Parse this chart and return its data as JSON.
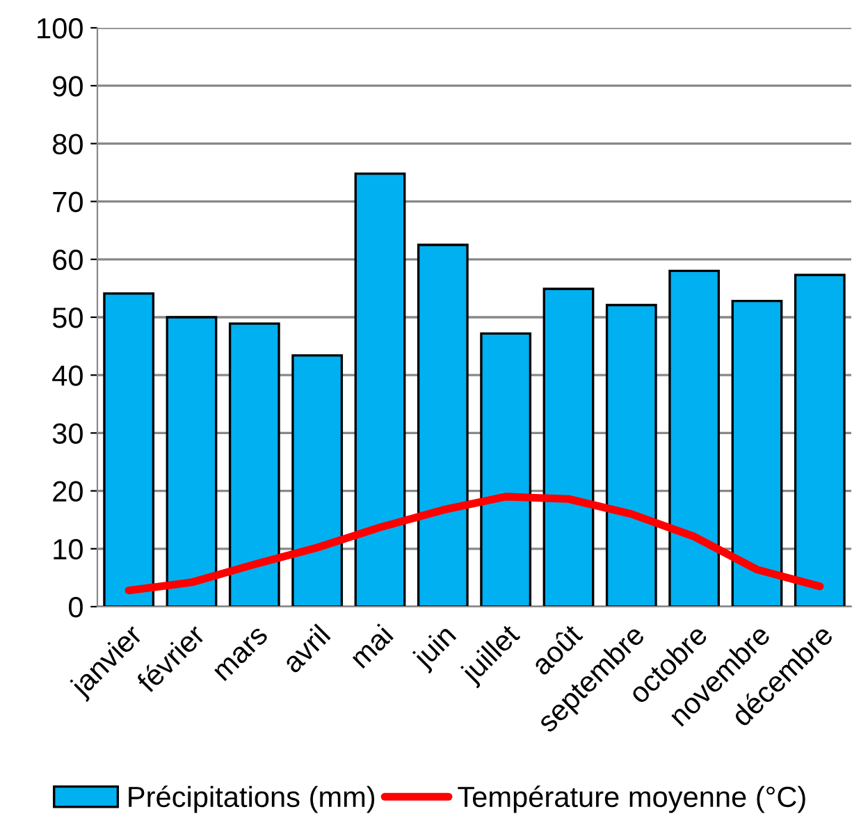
{
  "chart_data": {
    "type": "bar",
    "categories": [
      "janvier",
      "février",
      "mars",
      "avril",
      "mai",
      "juin",
      "juillet",
      "août",
      "septembre",
      "octobre",
      "novembre",
      "décembre"
    ],
    "series": [
      {
        "name": "Précipitations (mm)",
        "color": "#00b0f0",
        "values": [
          54.1,
          50.0,
          48.9,
          43.4,
          74.8,
          62.5,
          47.2,
          54.9,
          52.1,
          58.0,
          52.8,
          57.3
        ]
      },
      {
        "name": "Température moyenne (°C)",
        "type": "line",
        "color": "#ff0000",
        "values": [
          2.8,
          4.2,
          7.3,
          10.2,
          13.7,
          16.7,
          19.0,
          18.6,
          16.0,
          12.1,
          6.4,
          3.5
        ]
      }
    ],
    "ylim": [
      0,
      100
    ],
    "yticks": [
      0,
      10,
      20,
      30,
      40,
      50,
      60,
      70,
      80,
      90,
      100
    ],
    "grid": "y",
    "legend": "bottom"
  }
}
